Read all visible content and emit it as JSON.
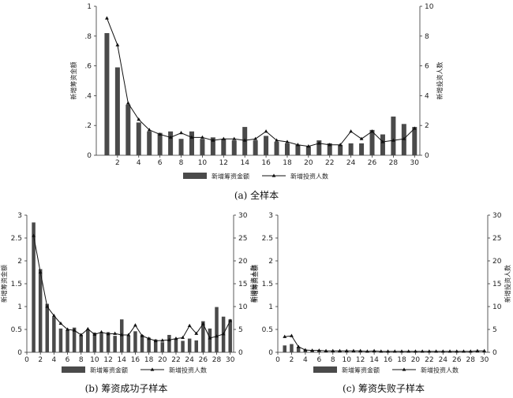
{
  "chart_data": [
    {
      "type": "bar",
      "caption": "(a)  全样本",
      "x": [
        1,
        2,
        3,
        4,
        5,
        6,
        7,
        8,
        9,
        10,
        11,
        12,
        13,
        14,
        15,
        16,
        17,
        18,
        19,
        20,
        21,
        22,
        23,
        24,
        25,
        26,
        27,
        28,
        29,
        30
      ],
      "xticks": [
        "2",
        "4",
        "6",
        "8",
        "10",
        "12",
        "14",
        "16",
        "18",
        "20",
        "22",
        "24",
        "26",
        "28",
        "30"
      ],
      "ylabel_left": "新增筹资金额",
      "ylabel_right": "新增投资人数",
      "ylim_left": [
        0,
        1
      ],
      "ylim_right": [
        0,
        10
      ],
      "yticks_left": [
        "0",
        ".2",
        ".4",
        ".6",
        ".8",
        "1"
      ],
      "yticks_right": [
        "0",
        "2",
        "4",
        "6",
        "8",
        "10"
      ],
      "series": [
        {
          "name": "新增筹资金额",
          "axis": "left",
          "kind": "bar",
          "values": [
            0.82,
            0.59,
            0.34,
            0.22,
            0.16,
            0.15,
            0.16,
            0.11,
            0.16,
            0.11,
            0.12,
            0.11,
            0.1,
            0.19,
            0.1,
            0.13,
            0.09,
            0.08,
            0.07,
            0.06,
            0.1,
            0.08,
            0.07,
            0.08,
            0.08,
            0.17,
            0.14,
            0.26,
            0.21,
            0.19
          ]
        },
        {
          "name": "新增投资人数",
          "axis": "right",
          "kind": "line",
          "values": [
            9.2,
            7.4,
            3.5,
            2.4,
            1.7,
            1.4,
            1.2,
            1.5,
            1.2,
            1.2,
            1.0,
            1.1,
            1.1,
            1.0,
            1.1,
            1.6,
            1.0,
            0.9,
            0.7,
            0.6,
            0.8,
            0.7,
            0.7,
            1.6,
            1.1,
            1.6,
            0.9,
            1.0,
            1.1,
            1.8
          ]
        }
      ],
      "legend": [
        "新增筹资金额",
        "新增投资人数"
      ]
    },
    {
      "type": "bar",
      "caption": "(b)  筹资成功子样本",
      "x": [
        1,
        2,
        3,
        4,
        5,
        6,
        7,
        8,
        9,
        10,
        11,
        12,
        13,
        14,
        15,
        16,
        17,
        18,
        19,
        20,
        21,
        22,
        23,
        24,
        25,
        26,
        27,
        28,
        29,
        30
      ],
      "xticks": [
        "0",
        "2",
        "4",
        "6",
        "8",
        "10",
        "12",
        "14",
        "16",
        "18",
        "20",
        "22",
        "24",
        "26",
        "28",
        "30"
      ],
      "ylabel_left": "新增筹资金额",
      "ylabel_right": "新增投资人数",
      "ylim_left": [
        0,
        3
      ],
      "ylim_right": [
        0,
        30
      ],
      "yticks_left": [
        "0",
        "0.5",
        "1",
        "1.5",
        "2",
        "2.5",
        "3"
      ],
      "yticks_right": [
        "0",
        "5",
        "10",
        "15",
        "20",
        "25",
        "30"
      ],
      "series": [
        {
          "name": "新增筹资金额",
          "axis": "left",
          "kind": "bar",
          "values": [
            2.84,
            1.82,
            1.06,
            0.77,
            0.52,
            0.49,
            0.54,
            0.38,
            0.5,
            0.43,
            0.41,
            0.44,
            0.36,
            0.72,
            0.36,
            0.46,
            0.38,
            0.32,
            0.28,
            0.22,
            0.38,
            0.3,
            0.25,
            0.3,
            0.26,
            0.68,
            0.52,
            0.99,
            0.78,
            0.72
          ]
        },
        {
          "name": "新增投资人数",
          "axis": "right",
          "kind": "line",
          "values": [
            25.5,
            17.5,
            10.0,
            8.0,
            6.3,
            5.0,
            4.8,
            3.8,
            5.1,
            3.9,
            4.4,
            4.0,
            4.1,
            3.8,
            3.8,
            5.9,
            3.6,
            3.0,
            2.5,
            2.6,
            2.7,
            3.0,
            3.2,
            5.8,
            4.1,
            6.2,
            3.1,
            3.5,
            4.0,
            6.9
          ]
        }
      ],
      "legend": [
        "新增筹资金额",
        "新增投资人数"
      ]
    },
    {
      "type": "bar",
      "caption": "(c)  筹资失败子样本",
      "x": [
        1,
        2,
        3,
        4,
        5,
        6,
        7,
        8,
        9,
        10,
        11,
        12,
        13,
        14,
        15,
        16,
        17,
        18,
        19,
        20,
        21,
        22,
        23,
        24,
        25,
        26,
        27,
        28,
        29,
        30
      ],
      "xticks": [
        "0",
        "2",
        "4",
        "6",
        "8",
        "10",
        "12",
        "14",
        "16",
        "18",
        "20",
        "22",
        "24",
        "26",
        "28",
        "30"
      ],
      "ylabel_left": "新增筹资金额",
      "ylabel_right": "新增投资人数",
      "ylim_left": [
        0,
        3
      ],
      "ylim_right": [
        0,
        30
      ],
      "yticks_left": [
        "0",
        "0.5",
        "1",
        "1.5",
        "2",
        "2.5",
        "3"
      ],
      "yticks_right": [
        "0",
        "5",
        "10",
        "15",
        "20",
        "25",
        "30"
      ],
      "series": [
        {
          "name": "新增筹资金额",
          "axis": "left",
          "kind": "bar",
          "values": [
            0.15,
            0.18,
            0.12,
            0.06,
            0.04,
            0.04,
            0.03,
            0.03,
            0.03,
            0.03,
            0.03,
            0.03,
            0.02,
            0.03,
            0.02,
            0.02,
            0.02,
            0.02,
            0.02,
            0.02,
            0.02,
            0.02,
            0.02,
            0.02,
            0.02,
            0.02,
            0.02,
            0.02,
            0.02,
            0.02
          ]
        },
        {
          "name": "新增投资人数",
          "axis": "right",
          "kind": "line",
          "values": [
            3.4,
            3.6,
            1.2,
            0.5,
            0.4,
            0.4,
            0.3,
            0.3,
            0.3,
            0.3,
            0.3,
            0.3,
            0.2,
            0.3,
            0.2,
            0.2,
            0.2,
            0.2,
            0.2,
            0.2,
            0.2,
            0.2,
            0.2,
            0.2,
            0.2,
            0.2,
            0.2,
            0.2,
            0.3,
            0.3
          ]
        }
      ],
      "legend": [
        "新增筹资金额",
        "新增投资人数"
      ]
    }
  ]
}
